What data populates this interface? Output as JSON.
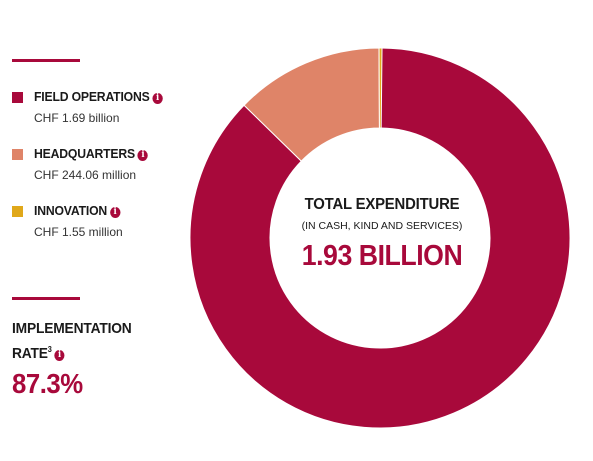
{
  "legend": [
    {
      "label": "FIELD OPERATIONS",
      "value": "CHF 1.69 billion",
      "color": "#a8093b"
    },
    {
      "label": "HEADQUARTERS",
      "value": "CHF 244.06 million",
      "color": "#df8468"
    },
    {
      "label": "INNOVATION",
      "value": "CHF 1.55 million",
      "color": "#e0a81a"
    }
  ],
  "implementation": {
    "label_line1": "IMPLEMENTATION",
    "label_line2": "RATE",
    "footnote": "3",
    "value": "87.3%"
  },
  "center": {
    "title": "TOTAL EXPENDITURE",
    "subtitle": "(IN CASH, KIND AND SERVICES)",
    "value": "1.93 BILLION"
  },
  "info_icon": "i",
  "colors": {
    "accent": "#a8093b",
    "rule": "#a8093b"
  },
  "chart_data": {
    "type": "pie",
    "categories": [
      "FIELD OPERATIONS",
      "HEADQUARTERS",
      "INNOVATION"
    ],
    "values": [
      1690,
      244.06,
      1.55
    ],
    "unit": "CHF million",
    "colors": [
      "#a8093b",
      "#df8468",
      "#e0a81a"
    ],
    "title": "TOTAL EXPENDITURE",
    "total_label": "1.93 BILLION"
  }
}
